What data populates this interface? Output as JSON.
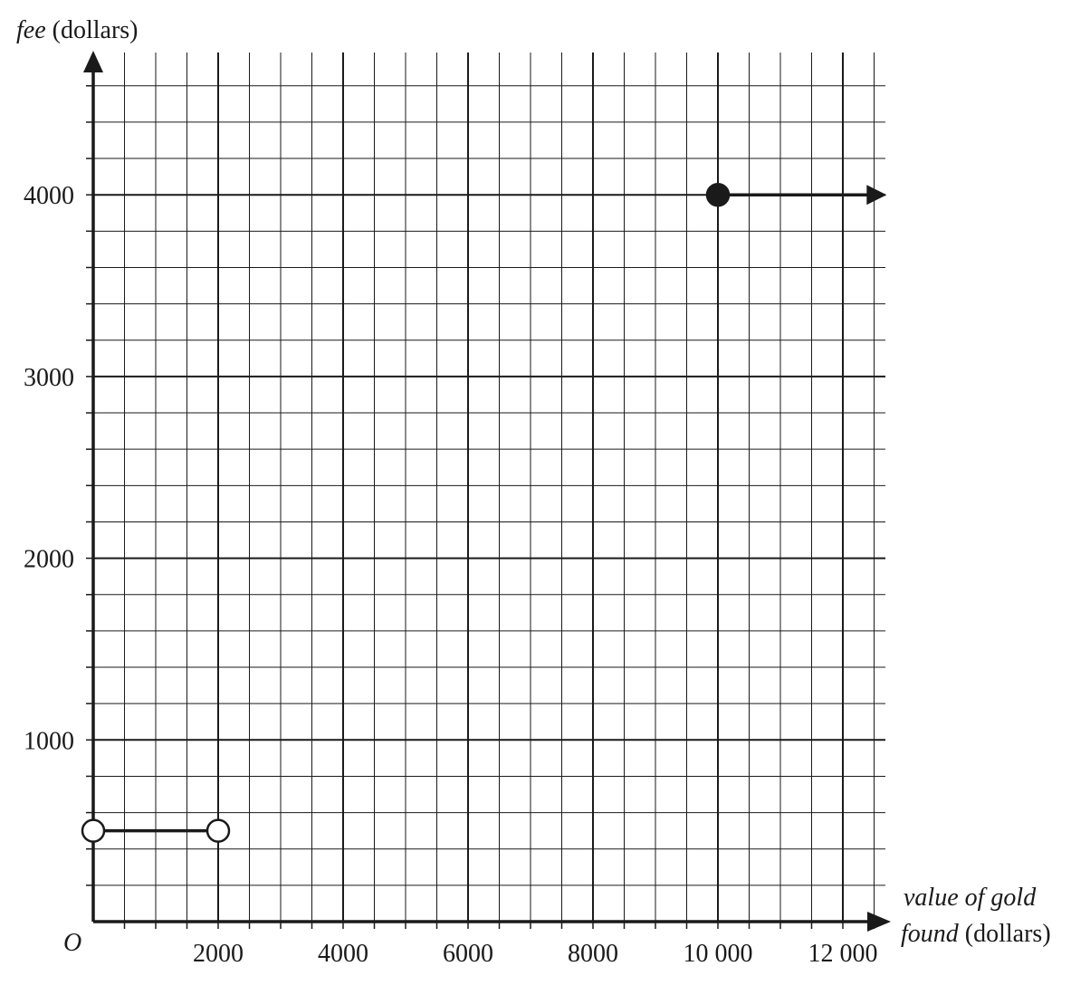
{
  "chart_data": {
    "type": "line",
    "title": "",
    "ylabel_italic": "fee",
    "ylabel_rest": " (dollars)",
    "xlabel_line1": "value of gold",
    "xlabel_line2_italic": "found",
    "xlabel_line2_rest": " (dollars)",
    "origin_label": "O",
    "xlim": [
      0,
      12700
    ],
    "ylim": [
      0,
      4700
    ],
    "x_minor_step": 500,
    "y_minor_step": 200,
    "x_major_step": 2000,
    "y_major_step": 1000,
    "grid": true,
    "x_ticks": [
      {
        "value": 2000,
        "label": "2000"
      },
      {
        "value": 4000,
        "label": "4000"
      },
      {
        "value": 6000,
        "label": "6000"
      },
      {
        "value": 8000,
        "label": "8000"
      },
      {
        "value": 10000,
        "label": "10 000"
      },
      {
        "value": 12000,
        "label": "12 000"
      }
    ],
    "y_ticks": [
      {
        "value": 1000,
        "label": "1000"
      },
      {
        "value": 2000,
        "label": "2000"
      },
      {
        "value": 3000,
        "label": "3000"
      },
      {
        "value": 4000,
        "label": "4000"
      }
    ],
    "series": [
      {
        "segments": [
          {
            "x_start": 0,
            "x_end": 2000,
            "y": 500,
            "start": "open",
            "end": "open",
            "arrow": false
          },
          {
            "x_start": 10000,
            "x_end": 12700,
            "y": 4000,
            "start": "closed",
            "end": "none",
            "arrow": true
          }
        ]
      }
    ],
    "colors": {
      "ink": "#1a1a1a",
      "background": "#ffffff"
    }
  }
}
